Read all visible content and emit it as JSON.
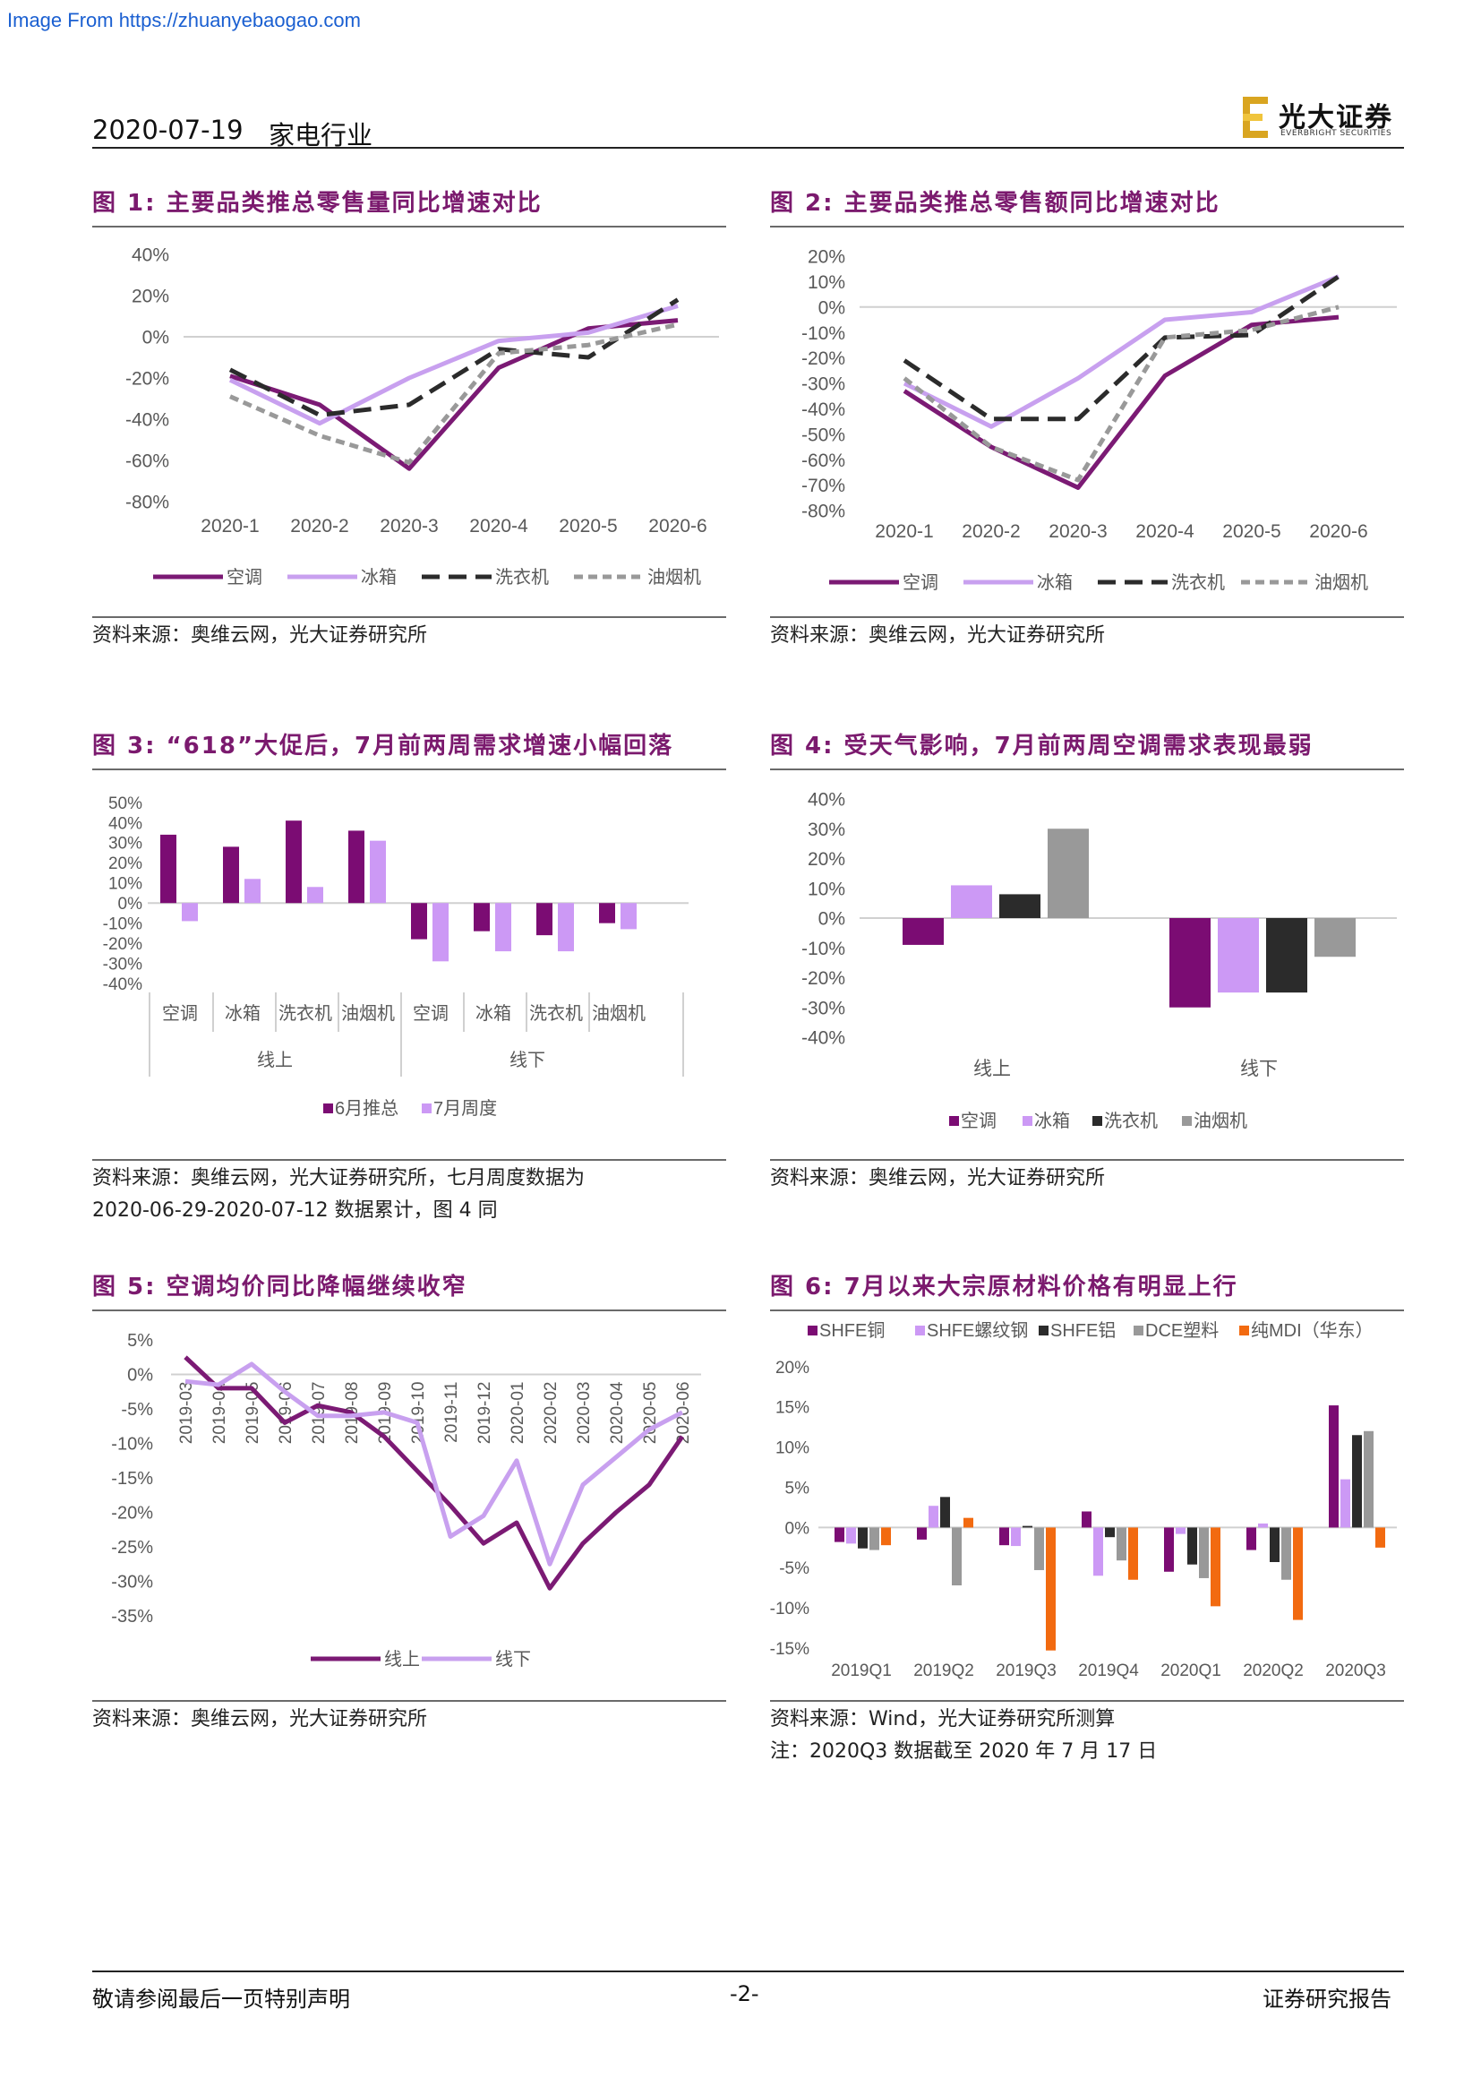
{
  "watermark": "Image From https://zhuanyebaogao.com",
  "header": {
    "date": "2020-07-19",
    "sector": "家电行业",
    "logo_cn": "光大证券",
    "logo_en": "EVERBRIGHT SECURITIES"
  },
  "figures": {
    "f1": {
      "title": "图 1:  主要品类推总零售量同比增速对比",
      "source": "资料来源：奥维云网，光大证券研究所"
    },
    "f2": {
      "title": "图 2:  主要品类推总零售额同比增速对比",
      "source": "资料来源：奥维云网，光大证券研究所"
    },
    "f3": {
      "title": "图 3:  “618”大促后，7月前两周需求增速小幅回落",
      "source_line1": "资料来源：奥维云网，光大证券研究所，七月周度数据为",
      "source_line2": "2020-06-29-2020-07-12 数据累计，图 4 同"
    },
    "f4": {
      "title": "图 4:  受天气影响，7月前两周空调需求表现最弱",
      "source": "资料来源：奥维云网，光大证券研究所"
    },
    "f5": {
      "title": "图 5:  空调均价同比降幅继续收窄",
      "source": "资料来源：奥维云网，光大证券研究所"
    },
    "f6": {
      "title": "图 6:  7月以来大宗原材料价格有明显上行",
      "source_line1": "资料来源：Wind，光大证券研究所测算",
      "source_line2": "注：2020Q3 数据截至 2020 年 7 月 17 日"
    }
  },
  "chart_data": [
    {
      "id": "f1",
      "type": "line",
      "categories": [
        "2020-1",
        "2020-2",
        "2020-3",
        "2020-4",
        "2020-5",
        "2020-6"
      ],
      "ylim": [
        -80,
        40
      ],
      "yticks": [
        40,
        20,
        0,
        -20,
        -40,
        -60,
        -80
      ],
      "tick_suffix": "%",
      "series": [
        {
          "name": "空调",
          "values": [
            -19,
            -33,
            -64,
            -15,
            4,
            8
          ],
          "color": "#7b1a74",
          "dash": ""
        },
        {
          "name": "冰箱",
          "values": [
            -21,
            -42,
            -20,
            -2,
            2,
            15
          ],
          "color": "#c8a0ef",
          "dash": ""
        },
        {
          "name": "洗衣机",
          "values": [
            -16,
            -38,
            -33,
            -6,
            -10,
            18
          ],
          "color": "#2b2b2b",
          "dash": "20,10"
        },
        {
          "name": "油烟机",
          "values": [
            -29,
            -48,
            -61,
            -8,
            -4,
            6
          ],
          "color": "#999999",
          "dash": "10,6"
        }
      ]
    },
    {
      "id": "f2",
      "type": "line",
      "categories": [
        "2020-1",
        "2020-2",
        "2020-3",
        "2020-4",
        "2020-5",
        "2020-6"
      ],
      "ylim": [
        -80,
        20
      ],
      "yticks": [
        20,
        10,
        0,
        -10,
        -20,
        -30,
        -40,
        -50,
        -60,
        -70,
        -80
      ],
      "tick_suffix": "%",
      "series": [
        {
          "name": "空调",
          "values": [
            -33,
            -55,
            -71,
            -27,
            -7,
            -4
          ],
          "color": "#7b1a74",
          "dash": ""
        },
        {
          "name": "冰箱",
          "values": [
            -30,
            -47,
            -28,
            -5,
            -2,
            12
          ],
          "color": "#c8a0ef",
          "dash": ""
        },
        {
          "name": "洗衣机",
          "values": [
            -21,
            -44,
            -44,
            -12,
            -11,
            12
          ],
          "color": "#2b2b2b",
          "dash": "20,10"
        },
        {
          "name": "油烟机",
          "values": [
            -28,
            -55,
            -68,
            -12,
            -9,
            0
          ],
          "color": "#999999",
          "dash": "10,6"
        }
      ]
    },
    {
      "id": "f3",
      "type": "bar",
      "groups": [
        "线上",
        "线下"
      ],
      "categories": [
        "空调",
        "冰箱",
        "洗衣机",
        "油烟机",
        "空调",
        "冰箱",
        "洗衣机",
        "油烟机"
      ],
      "ylim": [
        -40,
        50
      ],
      "yticks": [
        50,
        40,
        30,
        20,
        10,
        0,
        -10,
        -20,
        -30,
        -40
      ],
      "tick_suffix": "%",
      "series": [
        {
          "name": "6月推总",
          "values": [
            34,
            28,
            41,
            36,
            -18,
            -14,
            -16,
            -10
          ],
          "color": "#7b0c73"
        },
        {
          "name": "7月周度",
          "values": [
            -9,
            12,
            8,
            31,
            -29,
            -24,
            -24,
            -13
          ],
          "color": "#cc99f5"
        }
      ]
    },
    {
      "id": "f4",
      "type": "bar",
      "categories": [
        "线上",
        "线下"
      ],
      "ylim": [
        -40,
        40
      ],
      "yticks": [
        40,
        30,
        20,
        10,
        0,
        -10,
        -20,
        -30,
        -40
      ],
      "tick_suffix": "%",
      "series": [
        {
          "name": "空调",
          "values": [
            -9,
            -30
          ],
          "color": "#7b0c73"
        },
        {
          "name": "冰箱",
          "values": [
            11,
            -25
          ],
          "color": "#cc99f5"
        },
        {
          "name": "洗衣机",
          "values": [
            8,
            -25
          ],
          "color": "#2b2b2b"
        },
        {
          "name": "油烟机",
          "values": [
            30,
            -13
          ],
          "color": "#999999"
        }
      ]
    },
    {
      "id": "f5",
      "type": "line",
      "categories": [
        "2019-03",
        "2019-04",
        "2019-05",
        "2019-06",
        "2019-07",
        "2019-08",
        "2019-09",
        "2019-10",
        "2019-11",
        "2019-12",
        "2020-01",
        "2020-02",
        "2020-03",
        "2020-04",
        "2020-05",
        "2020-06"
      ],
      "ylim": [
        -35,
        5
      ],
      "yticks": [
        5,
        0,
        -5,
        -10,
        -15,
        -20,
        -25,
        -30,
        -35
      ],
      "tick_suffix": "%",
      "series": [
        {
          "name": "线上",
          "values": [
            2.5,
            -2,
            -2,
            -7,
            -4.5,
            -5.5,
            -9,
            -14,
            -19,
            -24.5,
            -21.5,
            -31,
            -24.5,
            -20,
            -16,
            -9
          ],
          "color": "#7b1a74",
          "dash": ""
        },
        {
          "name": "线下",
          "values": [
            -1,
            -1.5,
            1.5,
            -2.5,
            -6,
            -6,
            -5.5,
            -7,
            -23.5,
            -20.5,
            -12.5,
            -27.5,
            -16,
            -12,
            -8,
            -5.5
          ],
          "color": "#c8a0ef",
          "dash": ""
        }
      ]
    },
    {
      "id": "f6",
      "type": "bar",
      "categories": [
        "2019Q1",
        "2019Q2",
        "2019Q3",
        "2019Q4",
        "2020Q1",
        "2020Q2",
        "2020Q3"
      ],
      "ylim": [
        -15,
        20
      ],
      "yticks": [
        20,
        15,
        10,
        5,
        0,
        -5,
        -10,
        -15
      ],
      "tick_suffix": "%",
      "series": [
        {
          "name": "SHFE铜",
          "values": [
            -1.8,
            -1.5,
            -2.2,
            2,
            -5.5,
            -2.8,
            15.2
          ],
          "color": "#7b0c73"
        },
        {
          "name": "SHFE螺纹钢",
          "values": [
            -2,
            2.7,
            -2.3,
            -6,
            -0.8,
            0.5,
            6
          ],
          "color": "#cc99f5"
        },
        {
          "name": "SHFE铝",
          "values": [
            -2.6,
            3.8,
            0.2,
            -1.2,
            -4.6,
            -4.3,
            11.5
          ],
          "color": "#2b2b2b"
        },
        {
          "name": "DCE塑料",
          "values": [
            -2.8,
            -7.2,
            -5.3,
            -4.1,
            -6.3,
            -6.5,
            12
          ],
          "color": "#999999"
        },
        {
          "name": "纯MDI（华东）",
          "values": [
            -2.2,
            1.2,
            -15.3,
            -6.5,
            -9.8,
            -11.5,
            -2.5
          ],
          "color": "#f26a10"
        }
      ]
    }
  ],
  "footer": {
    "left": "敬请参阅最后一页特别声明",
    "page": "-2-",
    "right": "证券研究报告"
  }
}
